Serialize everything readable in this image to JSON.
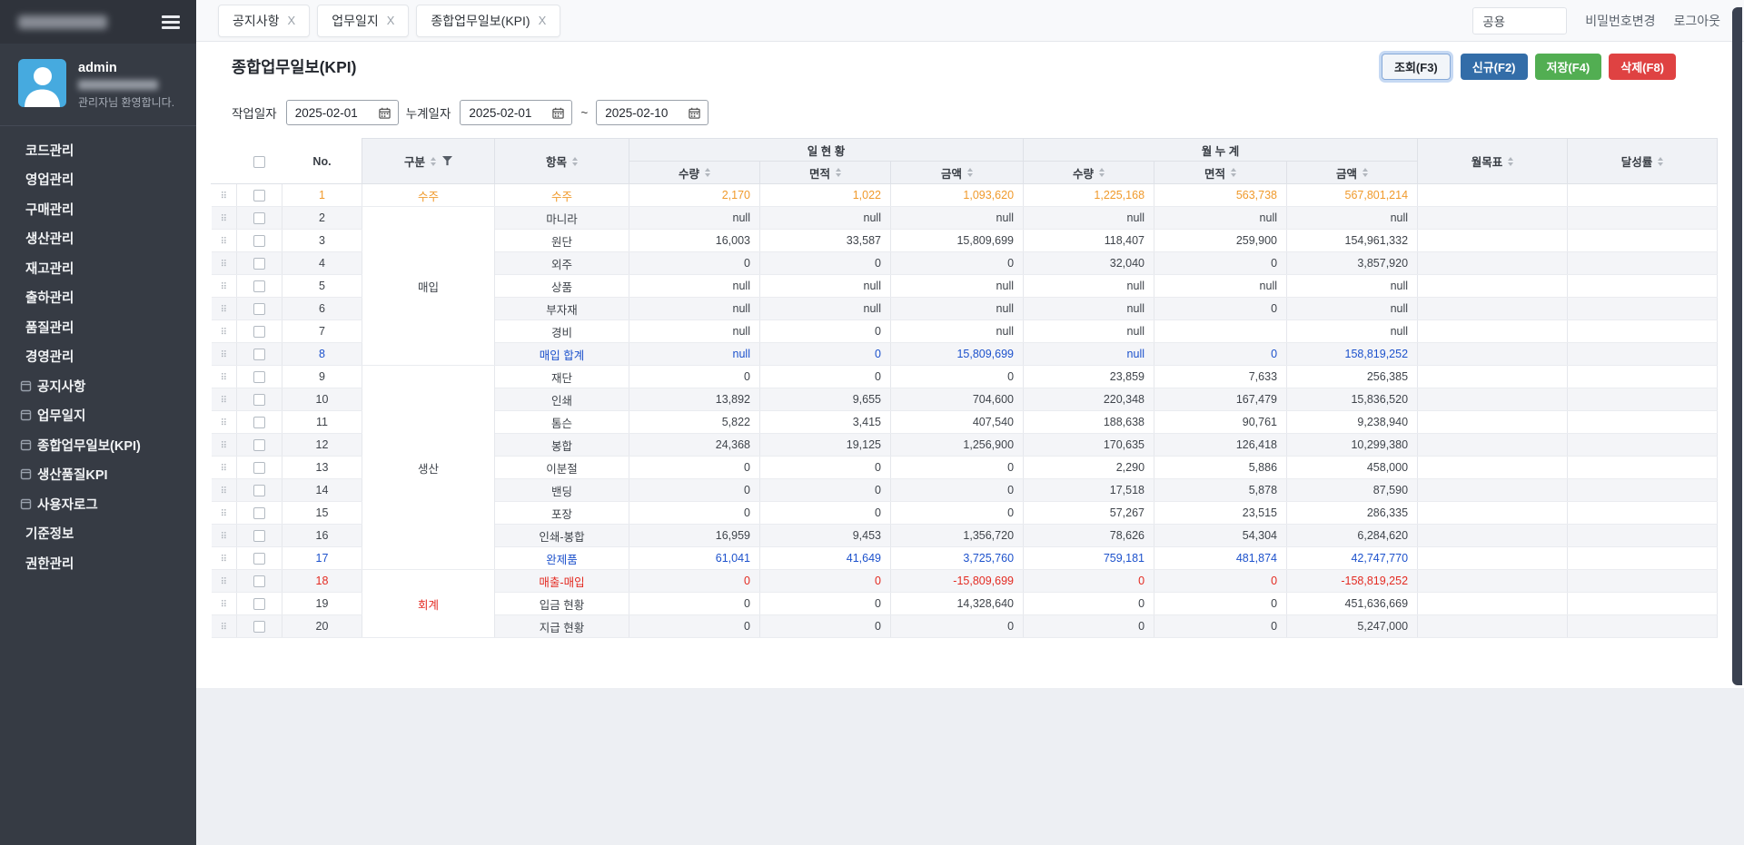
{
  "sidebar": {
    "username": "admin",
    "welcome": "관리자님 환영합니다.",
    "menu": [
      {
        "label": "코드관리",
        "type": "top"
      },
      {
        "label": "영업관리",
        "type": "top"
      },
      {
        "label": "구매관리",
        "type": "top"
      },
      {
        "label": "생산관리",
        "type": "top"
      },
      {
        "label": "재고관리",
        "type": "top"
      },
      {
        "label": "출하관리",
        "type": "top"
      },
      {
        "label": "품질관리",
        "type": "top"
      },
      {
        "label": "경영관리",
        "type": "top"
      },
      {
        "label": "공지사항",
        "type": "sub"
      },
      {
        "label": "업무일지",
        "type": "sub"
      },
      {
        "label": "종합업무일보(KPI)",
        "type": "sub"
      },
      {
        "label": "생산품질KPI",
        "type": "sub"
      },
      {
        "label": "사용자로그",
        "type": "sub"
      },
      {
        "label": "기준정보",
        "type": "top"
      },
      {
        "label": "권한관리",
        "type": "top"
      }
    ]
  },
  "topbar": {
    "tabs": [
      {
        "label": "공지사항"
      },
      {
        "label": "업무일지"
      },
      {
        "label": "종합업무일보(KPI)"
      }
    ],
    "close": "X",
    "shared_value": "공용",
    "change_password": "비밀번호변경",
    "logout": "로그아웃"
  },
  "page": {
    "title": "종합업무일보(KPI)",
    "buttons": {
      "search": "조회(F3)",
      "new": "신규(F2)",
      "save": "저장(F4)",
      "delete": "삭제(F8)"
    },
    "filters": {
      "work_date_label": "작업일자",
      "work_date": "2025-02-01",
      "cumulative_label": "누계일자",
      "cumulative_from": "2025-02-01",
      "tilde": "~",
      "cumulative_to": "2025-02-10"
    }
  },
  "grid": {
    "headers": {
      "no": "No.",
      "gubun": "구분",
      "item": "항목",
      "day_group": "일 현 황",
      "month_group": "월 누 계",
      "qty": "수량",
      "area": "면적",
      "amount": "금액",
      "goal": "월목표",
      "rate": "달성률"
    },
    "rows": [
      {
        "no": "1",
        "gubun": {
          "label": "수주",
          "span": 1,
          "color": "orange"
        },
        "item": "수주",
        "vals": [
          "2,170",
          "1,022",
          "1,093,620",
          "1,225,168",
          "563,738",
          "567,801,214"
        ],
        "color": "orange"
      },
      {
        "no": "2",
        "gubun": {
          "label": "매입",
          "span": 7
        },
        "item": "마니라",
        "vals": [
          "null",
          "null",
          "null",
          "null",
          "null",
          "null"
        ]
      },
      {
        "no": "3",
        "item": "원단",
        "vals": [
          "16,003",
          "33,587",
          "15,809,699",
          "118,407",
          "259,900",
          "154,961,332"
        ]
      },
      {
        "no": "4",
        "item": "외주",
        "vals": [
          "0",
          "0",
          "0",
          "32,040",
          "0",
          "3,857,920"
        ]
      },
      {
        "no": "5",
        "item": "상품",
        "vals": [
          "null",
          "null",
          "null",
          "null",
          "null",
          "null"
        ]
      },
      {
        "no": "6",
        "item": "부자재",
        "vals": [
          "null",
          "null",
          "null",
          "null",
          "0",
          "null"
        ]
      },
      {
        "no": "7",
        "item": "경비",
        "vals": [
          "null",
          "0",
          "null",
          "null",
          "",
          "null"
        ]
      },
      {
        "no": "8",
        "item": "매입 합계",
        "vals": [
          "null",
          "0",
          "15,809,699",
          "null",
          "0",
          "158,819,252"
        ],
        "color": "blue"
      },
      {
        "no": "9",
        "gubun": {
          "label": "생산",
          "span": 9
        },
        "item": "재단",
        "vals": [
          "0",
          "0",
          "0",
          "23,859",
          "7,633",
          "256,385"
        ]
      },
      {
        "no": "10",
        "item": "인쇄",
        "vals": [
          "13,892",
          "9,655",
          "704,600",
          "220,348",
          "167,479",
          "15,836,520"
        ]
      },
      {
        "no": "11",
        "item": "톰슨",
        "vals": [
          "5,822",
          "3,415",
          "407,540",
          "188,638",
          "90,761",
          "9,238,940"
        ]
      },
      {
        "no": "12",
        "item": "봉합",
        "vals": [
          "24,368",
          "19,125",
          "1,256,900",
          "170,635",
          "126,418",
          "10,299,380"
        ]
      },
      {
        "no": "13",
        "item": "이분절",
        "vals": [
          "0",
          "0",
          "0",
          "2,290",
          "5,886",
          "458,000"
        ]
      },
      {
        "no": "14",
        "item": "밴딩",
        "vals": [
          "0",
          "0",
          "0",
          "17,518",
          "5,878",
          "87,590"
        ]
      },
      {
        "no": "15",
        "item": "포장",
        "vals": [
          "0",
          "0",
          "0",
          "57,267",
          "23,515",
          "286,335"
        ]
      },
      {
        "no": "16",
        "item": "인쇄-봉합",
        "vals": [
          "16,959",
          "9,453",
          "1,356,720",
          "78,626",
          "54,304",
          "6,284,620"
        ]
      },
      {
        "no": "17",
        "item": "완제품",
        "vals": [
          "61,041",
          "41,649",
          "3,725,760",
          "759,181",
          "481,874",
          "42,747,770"
        ],
        "color": "blue"
      },
      {
        "no": "18",
        "gubun": {
          "label": "회계",
          "span": 3,
          "color": "red"
        },
        "item": "매출-매입",
        "vals": [
          "0",
          "0",
          "-15,809,699",
          "0",
          "0",
          "-158,819,252"
        ],
        "color": "red"
      },
      {
        "no": "19",
        "item": "입금 현황",
        "vals": [
          "0",
          "0",
          "14,328,640",
          "0",
          "0",
          "451,636,669"
        ]
      },
      {
        "no": "20",
        "item": "지급 현황",
        "vals": [
          "0",
          "0",
          "0",
          "0",
          "0",
          "5,247,000"
        ]
      }
    ]
  },
  "colors": {
    "orange": "#f09a2c",
    "blue": "#1d52cc",
    "red": "#e32b22",
    "button_new": "#336da8",
    "button_save": "#52ae52",
    "button_delete": "#df4242",
    "sidebar_bg": "#363b44",
    "avatar_bg": "#46aadf"
  }
}
